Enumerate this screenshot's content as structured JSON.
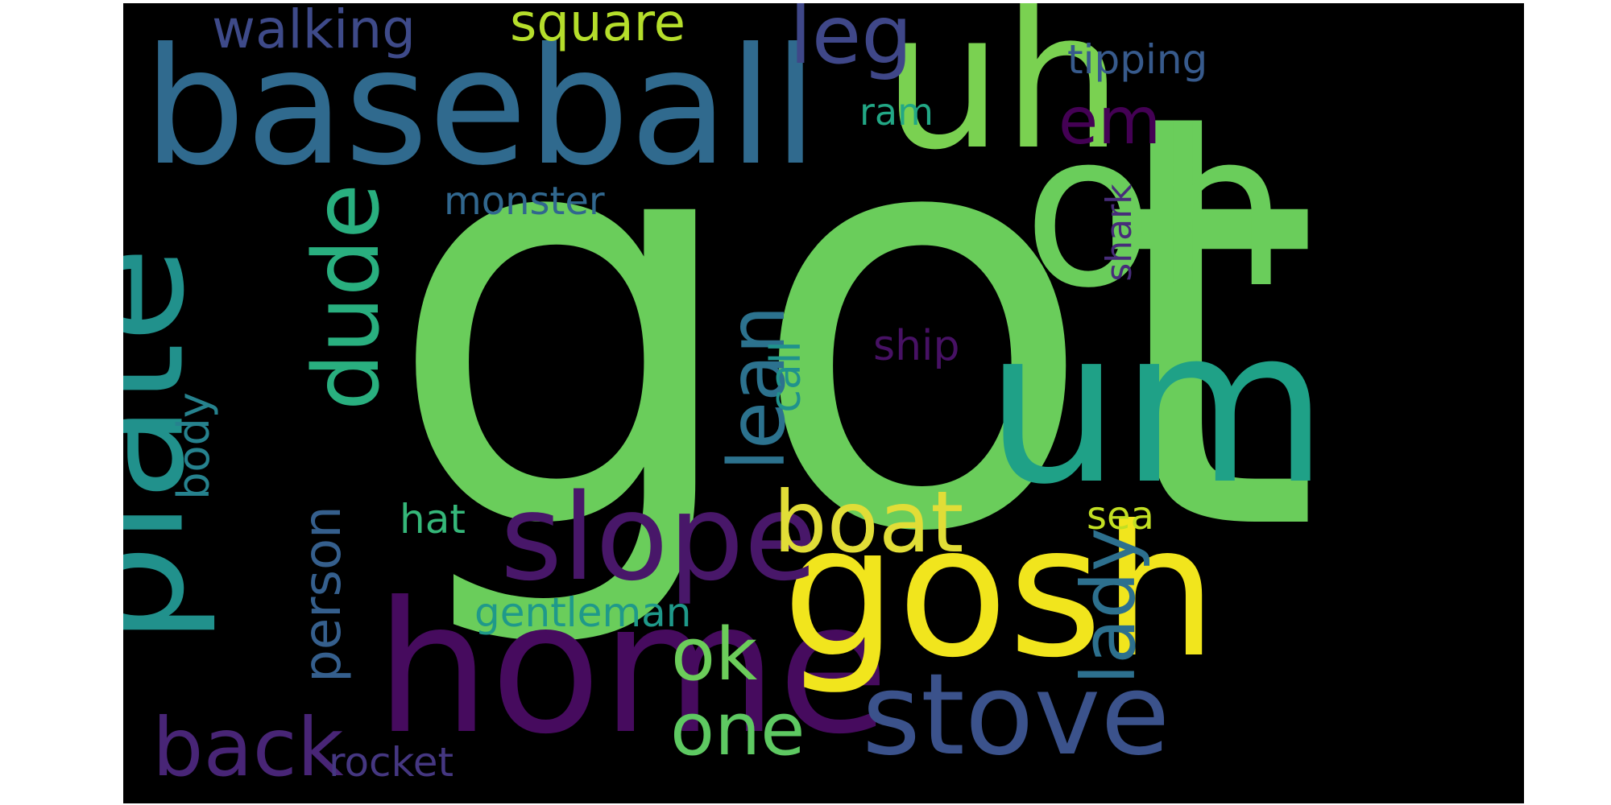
{
  "canvas": {
    "background": "#000000",
    "page_background": "#ffffff"
  },
  "words": [
    {
      "id": "got",
      "text": "got",
      "color": "#6acd5b"
    },
    {
      "id": "baseball",
      "text": "baseball",
      "color": "#306a8e"
    },
    {
      "id": "plate",
      "text": "plate",
      "color": "#21918c"
    },
    {
      "id": "home",
      "text": "home",
      "color": "#460b5e"
    },
    {
      "id": "oh",
      "text": "oh",
      "color": "#6acd5b"
    },
    {
      "id": "um",
      "text": "um",
      "color": "#1fa187"
    },
    {
      "id": "uh",
      "text": "uh",
      "color": "#7ad151"
    },
    {
      "id": "gosh",
      "text": "gosh",
      "color": "#f1e51d"
    },
    {
      "id": "slope",
      "text": "slope",
      "color": "#481769"
    },
    {
      "id": "stove",
      "text": "stove",
      "color": "#3b528b"
    },
    {
      "id": "boat",
      "text": "boat",
      "color": "#e1dd37"
    },
    {
      "id": "leg",
      "text": "leg",
      "color": "#3f4788"
    },
    {
      "id": "em",
      "text": "em",
      "color": "#440154"
    },
    {
      "id": "dude",
      "text": "dude",
      "color": "#29af7f"
    },
    {
      "id": "lean",
      "text": "lean",
      "color": "#2c728e"
    },
    {
      "id": "back",
      "text": "back",
      "color": "#482576"
    },
    {
      "id": "ok",
      "text": "ok",
      "color": "#6ccd5a"
    },
    {
      "id": "one",
      "text": "one",
      "color": "#5ec962"
    },
    {
      "id": "lady",
      "text": "lady",
      "color": "#2d708e"
    },
    {
      "id": "person",
      "text": "person",
      "color": "#355f8d"
    },
    {
      "id": "walking",
      "text": "walking",
      "color": "#3e4a89"
    },
    {
      "id": "square",
      "text": "square",
      "color": "#b5de2b"
    },
    {
      "id": "tipping",
      "text": "tipping",
      "color": "#375a8c"
    },
    {
      "id": "monster",
      "text": "monster",
      "color": "#31678e"
    },
    {
      "id": "ram",
      "text": "ram",
      "color": "#22a785"
    },
    {
      "id": "shark",
      "text": "shark",
      "color": "#472c7a"
    },
    {
      "id": "ship",
      "text": "ship",
      "color": "#471164"
    },
    {
      "id": "call",
      "text": "call",
      "color": "#20928c"
    },
    {
      "id": "body",
      "text": "body",
      "color": "#26828e"
    },
    {
      "id": "hat",
      "text": "hat",
      "color": "#35b779"
    },
    {
      "id": "sea",
      "text": "sea",
      "color": "#c2df23"
    },
    {
      "id": "gentleman",
      "text": "gentleman",
      "color": "#1f998a"
    },
    {
      "id": "rocket",
      "text": "rocket",
      "color": "#453781"
    }
  ]
}
